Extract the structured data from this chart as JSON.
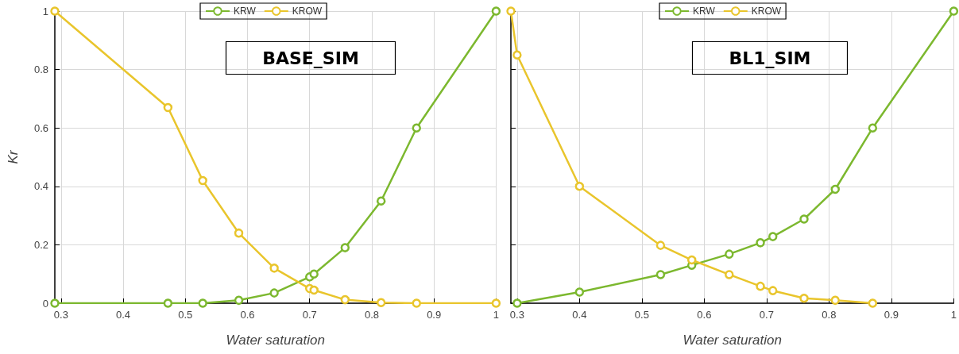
{
  "chart_data": [
    {
      "type": "line",
      "title": "BASE_SIM",
      "xlabel": "Water saturation",
      "ylabel": "Kr",
      "xlim": [
        0.29,
        1
      ],
      "xticks": [
        0.3,
        0.4,
        0.5,
        0.6,
        0.7,
        0.8,
        0.9,
        1
      ],
      "ylim": [
        0,
        1
      ],
      "yticks": [
        0,
        0.2,
        0.4,
        0.6,
        0.8,
        1
      ],
      "grid": true,
      "legend": "top",
      "marker": "circle",
      "line_style": "solid",
      "series": [
        {
          "name": "KRW",
          "color": "#7cb82f",
          "x": [
            0.29,
            0.472,
            0.528,
            0.586,
            0.643,
            0.7,
            0.707,
            0.757,
            0.815,
            0.872,
            1
          ],
          "values": [
            0,
            0,
            0,
            0.01,
            0.035,
            0.09,
            0.1,
            0.19,
            0.35,
            0.6,
            1
          ]
        },
        {
          "name": "KROW",
          "color": "#e9c52c",
          "x": [
            0.29,
            0.472,
            0.528,
            0.586,
            0.643,
            0.7,
            0.707,
            0.757,
            0.815,
            0.872,
            1
          ],
          "values": [
            1,
            0.67,
            0.42,
            0.24,
            0.12,
            0.05,
            0.045,
            0.012,
            0.002,
            0,
            0
          ]
        }
      ]
    },
    {
      "type": "line",
      "title": "BL1_SIM",
      "xlabel": "Water saturation",
      "xlim": [
        0.29,
        1
      ],
      "xticks": [
        0.3,
        0.4,
        0.5,
        0.6,
        0.7,
        0.8,
        0.9,
        1
      ],
      "ylim": [
        0,
        1
      ],
      "yticks": [
        0,
        0.2,
        0.4,
        0.6,
        0.8,
        1
      ],
      "tick_labels": "x",
      "grid": true,
      "legend": "top",
      "marker": "circle",
      "line_style": "solid",
      "series": [
        {
          "name": "KRW",
          "color": "#7cb82f",
          "x": [
            0.3,
            0.4,
            0.53,
            0.58,
            0.64,
            0.69,
            0.71,
            0.76,
            0.81,
            0.87,
            1
          ],
          "values": [
            0,
            0.038,
            0.098,
            0.13,
            0.168,
            0.207,
            0.228,
            0.288,
            0.39,
            0.6,
            1
          ]
        },
        {
          "name": "KROW",
          "color": "#e9c52c",
          "x": [
            0.29,
            0.3,
            0.4,
            0.53,
            0.58,
            0.64,
            0.69,
            0.71,
            0.76,
            0.81,
            0.87
          ],
          "values": [
            1,
            0.85,
            0.4,
            0.198,
            0.148,
            0.098,
            0.058,
            0.043,
            0.017,
            0.01,
            0
          ]
        }
      ]
    }
  ]
}
